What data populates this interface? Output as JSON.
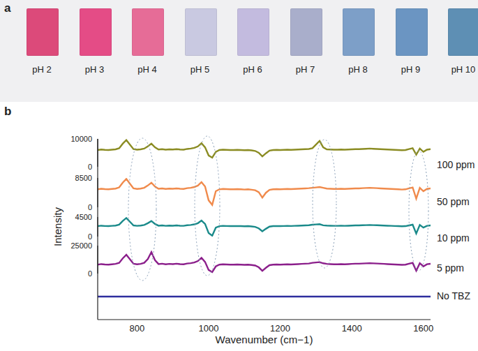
{
  "panel_a": {
    "label": "a",
    "samples": [
      {
        "label": "pH 2",
        "color": "#dc4a7a"
      },
      {
        "label": "pH 3",
        "color": "#e44c86"
      },
      {
        "label": "pH 4",
        "color": "#e66c97"
      },
      {
        "label": "pH 5",
        "color": "#c9c9e1"
      },
      {
        "label": "pH 6",
        "color": "#c3bbdf"
      },
      {
        "label": "pH 7",
        "color": "#a9aecb"
      },
      {
        "label": "pH 8",
        "color": "#7d9fc8"
      },
      {
        "label": "pH 9",
        "color": "#6b95c2"
      },
      {
        "label": "pH 10",
        "color": "#5e8fb4"
      }
    ]
  },
  "chart_data": {
    "type": "line",
    "title": "b",
    "x_label": "Wavenumber (cm−1)",
    "y_label": "Intensity",
    "xlim": [
      690,
      1620
    ],
    "xticks": [
      800,
      1000,
      1200,
      1400,
      1600
    ],
    "x": [
      690,
      700,
      710,
      720,
      730,
      740,
      750,
      760,
      770,
      780,
      790,
      800,
      810,
      820,
      830,
      840,
      850,
      860,
      870,
      880,
      890,
      900,
      910,
      920,
      930,
      940,
      950,
      960,
      970,
      980,
      990,
      1000,
      1010,
      1020,
      1030,
      1040,
      1050,
      1060,
      1070,
      1080,
      1090,
      1100,
      1110,
      1120,
      1130,
      1140,
      1150,
      1160,
      1170,
      1180,
      1190,
      1200,
      1210,
      1220,
      1230,
      1240,
      1250,
      1260,
      1270,
      1280,
      1290,
      1300,
      1310,
      1320,
      1330,
      1340,
      1350,
      1360,
      1370,
      1380,
      1390,
      1400,
      1410,
      1420,
      1430,
      1440,
      1450,
      1460,
      1470,
      1480,
      1490,
      1500,
      1510,
      1520,
      1530,
      1540,
      1550,
      1560,
      1570,
      1580,
      1590,
      1600,
      1610,
      1620
    ],
    "series": [
      {
        "name": "100 ppm",
        "color": "#8b8c23",
        "ylim": [
          0,
          10000
        ],
        "yticks": [
          0,
          10000
        ],
        "values": [
          6000,
          6195,
          6065,
          6000,
          6130,
          6260,
          6650,
          8275,
          9575,
          7950,
          6325,
          6130,
          6260,
          6520,
          7300,
          8275,
          6975,
          6195,
          6325,
          6130,
          6260,
          6195,
          6325,
          6195,
          6130,
          6390,
          6520,
          6780,
          7300,
          8470,
          6975,
          4050,
          3270,
          5350,
          6000,
          6130,
          6065,
          6000,
          6000,
          6065,
          6000,
          5935,
          6000,
          5870,
          5675,
          5025,
          3725,
          4830,
          5805,
          6000,
          6065,
          6000,
          6065,
          6130,
          6065,
          6130,
          6195,
          6260,
          6325,
          6390,
          6650,
          7950,
          9250,
          6975,
          6260,
          6195,
          6130,
          6130,
          6195,
          6130,
          6195,
          6260,
          6325,
          6325,
          6390,
          6455,
          6520,
          6455,
          6390,
          6325,
          6260,
          6195,
          6130,
          6065,
          6000,
          5935,
          6000,
          6325,
          6650,
          4375,
          6520,
          5350,
          6130,
          6325
        ]
      },
      {
        "name": "50 ppm",
        "color": "#f08a4b",
        "ylim": [
          0,
          8500
        ],
        "yticks": [
          0,
          8500
        ],
        "values": [
          5200,
          5365,
          5255,
          5200,
          5310,
          5420,
          5750,
          7125,
          8225,
          6850,
          5475,
          5310,
          5420,
          5640,
          6300,
          7125,
          6025,
          5365,
          5475,
          5310,
          5420,
          5365,
          5475,
          5365,
          5310,
          5530,
          5640,
          5860,
          6300,
          7290,
          6025,
          2000,
          700,
          4650,
          5200,
          5310,
          5255,
          5200,
          5200,
          5255,
          5200,
          5145,
          5200,
          5090,
          4925,
          4375,
          2800,
          4210,
          5035,
          5200,
          5255,
          5200,
          5255,
          5310,
          5255,
          5310,
          5365,
          5420,
          5475,
          5530,
          5640,
          5750,
          5860,
          5640,
          5420,
          5365,
          5310,
          5310,
          5365,
          5310,
          5365,
          5420,
          5475,
          5475,
          5530,
          5585,
          5640,
          5585,
          5530,
          5475,
          5420,
          5365,
          5310,
          5255,
          5200,
          5145,
          5200,
          5475,
          5750,
          2500,
          5640,
          4650,
          5310,
          5475
        ]
      },
      {
        "name": "10 ppm",
        "color": "#1a8a8a",
        "ylim": [
          0,
          4500
        ],
        "yticks": [
          0,
          4500
        ],
        "values": [
          2400,
          2502,
          2434,
          2400,
          2468,
          2536,
          2740,
          3590,
          4270,
          3420,
          2570,
          2468,
          2536,
          2672,
          3080,
          3590,
          2910,
          2502,
          2570,
          2468,
          2536,
          2502,
          2570,
          2502,
          2468,
          2604,
          2672,
          2808,
          3080,
          3692,
          2910,
          800,
          200,
          2060,
          2400,
          2468,
          2434,
          2400,
          2400,
          2434,
          2400,
          2366,
          2400,
          2332,
          2230,
          1890,
          1210,
          1788,
          2298,
          2400,
          2434,
          2400,
          2434,
          2468,
          2434,
          2468,
          2502,
          2536,
          2570,
          2604,
          2740,
          2800,
          2850,
          2600,
          2536,
          2502,
          2468,
          2468,
          2502,
          2468,
          2502,
          2536,
          2570,
          2570,
          2604,
          2638,
          2672,
          2638,
          2604,
          2570,
          2536,
          2502,
          2468,
          2434,
          2400,
          2366,
          2400,
          2570,
          2740,
          700,
          2672,
          2060,
          2468,
          2570
        ]
      },
      {
        "name": "5 ppm",
        "color": "#8b1f8b",
        "ylim": [
          0,
          25000
        ],
        "yticks": [
          0,
          25000
        ],
        "values": [
          8000,
          8480,
          8160,
          8000,
          8320,
          8640,
          9600,
          13600,
          16800,
          12800,
          8800,
          8320,
          8640,
          9600,
          13000,
          19200,
          12000,
          8480,
          8800,
          8320,
          8640,
          8480,
          8800,
          8480,
          8320,
          8960,
          9280,
          9920,
          11200,
          14080,
          10400,
          3200,
          1300,
          6400,
          8000,
          8320,
          8160,
          8000,
          8000,
          8160,
          8000,
          7840,
          8000,
          7680,
          7200,
          5600,
          2400,
          5120,
          7520,
          8000,
          8160,
          8000,
          8160,
          8320,
          8160,
          8320,
          8480,
          8640,
          8800,
          8960,
          9600,
          9900,
          10200,
          9200,
          8640,
          8480,
          8320,
          8320,
          8480,
          8320,
          8480,
          8640,
          8800,
          8800,
          8960,
          9120,
          9280,
          9120,
          8960,
          8800,
          8640,
          8480,
          8320,
          8160,
          8000,
          7840,
          8000,
          8800,
          9600,
          2500,
          9280,
          6400,
          8320,
          8800
        ]
      },
      {
        "name": "No TBZ",
        "color": "#2e2e9e",
        "values": [
          0,
          0,
          0,
          0,
          0,
          0,
          0,
          0,
          0,
          0,
          0,
          0,
          0,
          0,
          0,
          0,
          0,
          0,
          0,
          0,
          0,
          0,
          0,
          0,
          0,
          0,
          0,
          0,
          0,
          0,
          0,
          0,
          0,
          0,
          0,
          0,
          0,
          0,
          0,
          0,
          0,
          0,
          0,
          0,
          0,
          0,
          0,
          0,
          0,
          0,
          0,
          0,
          0,
          0,
          0,
          0,
          0,
          0,
          0,
          0,
          0,
          0,
          0,
          0,
          0,
          0,
          0,
          0,
          0,
          0,
          0,
          0,
          0,
          0,
          0,
          0,
          0,
          0,
          0,
          0,
          0,
          0,
          0,
          0,
          0,
          0,
          0,
          0,
          0,
          0,
          0,
          0,
          0,
          0
        ]
      }
    ]
  }
}
